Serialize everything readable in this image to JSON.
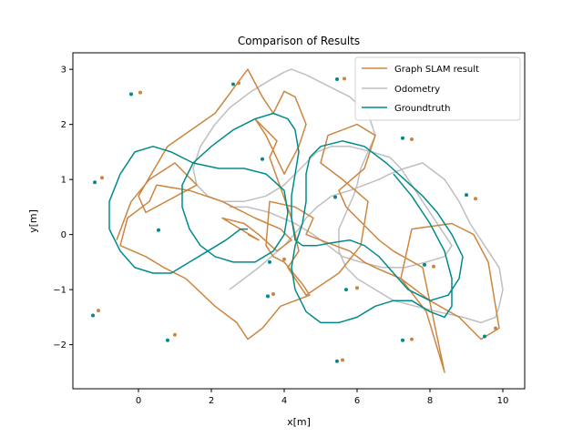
{
  "chart_data": {
    "type": "line",
    "title": "Comparison of Results",
    "xlabel": "x[m]",
    "ylabel": "y[m]",
    "xlim": [
      -1.8,
      10.6
    ],
    "ylim": [
      -2.8,
      3.3
    ],
    "xticks": [
      0,
      2,
      4,
      6,
      8,
      10
    ],
    "yticks": [
      -2,
      -1,
      0,
      1,
      2,
      3
    ],
    "grid": false,
    "legend_position": "top-right",
    "colors": {
      "slam": "#cd853f",
      "odometry": "#bfbfbf",
      "groundtruth": "#008b8b"
    },
    "series": [
      {
        "name": "Graph SLAM result",
        "x": [
          -0.6,
          -0.2,
          0.3,
          1.0,
          1.6,
          0.2,
          0.0,
          0.8,
          2.1,
          3.0,
          3.4,
          3.7,
          4.0,
          4.3,
          4.6,
          4.4,
          4.0,
          3.5,
          3.2,
          3.8,
          3.6,
          4.2,
          4.4,
          4.1,
          4.6,
          5.5,
          6.1,
          6.3,
          5.6,
          5.0,
          5.2,
          6.0,
          6.5,
          6.2,
          5.5,
          5.7,
          6.6,
          7.0,
          7.8,
          8.4,
          7.9,
          7.2,
          7.5,
          8.6,
          9.2,
          9.6,
          9.9,
          9.4,
          8.8,
          8.0,
          7.2,
          6.5,
          6.2,
          5.8,
          5.0,
          4.6,
          4.8,
          4.3,
          3.6,
          3.5,
          3.7,
          4.0,
          4.5,
          4.7,
          3.9,
          3.4,
          3.0,
          2.7,
          2.1,
          1.3,
          0.7,
          0.2,
          -0.5,
          -0.3,
          0.3,
          0.5,
          1.4,
          2.3,
          3.2,
          3.9,
          4.2,
          3.8,
          3.3,
          2.9,
          2.3,
          2.8,
          3.3,
          3.0
        ],
        "y": [
          -0.1,
          0.6,
          1.0,
          1.3,
          0.9,
          0.4,
          0.7,
          1.6,
          2.2,
          3.0,
          2.5,
          2.2,
          2.6,
          2.5,
          2.0,
          1.6,
          1.1,
          1.8,
          2.1,
          1.7,
          1.4,
          0.3,
          -0.3,
          -0.6,
          -1.1,
          -0.7,
          -0.2,
          0.6,
          1.0,
          1.3,
          1.8,
          2.0,
          1.8,
          1.2,
          0.8,
          0.5,
          -0.1,
          -0.3,
          -0.6,
          -2.5,
          -1.4,
          -0.8,
          0.1,
          0.2,
          0.0,
          -0.5,
          -1.7,
          -1.9,
          -1.5,
          -1.2,
          -0.8,
          -0.6,
          -0.5,
          -0.3,
          -0.1,
          0.0,
          0.3,
          0.5,
          0.6,
          -0.2,
          -0.4,
          -0.5,
          -0.9,
          -1.1,
          -1.3,
          -1.7,
          -1.9,
          -1.6,
          -1.3,
          -0.8,
          -0.6,
          -0.4,
          -0.2,
          0.3,
          0.6,
          0.9,
          0.8,
          0.6,
          0.3,
          0.1,
          -0.1,
          -0.3,
          0.0,
          0.2,
          0.3,
          0.1,
          -0.1,
          0.0
        ],
        "landmarks_x": [
          0.05,
          -1.0,
          2.75,
          5.65,
          7.5,
          9.25,
          8.1,
          6.0,
          7.5,
          4.0,
          1.0,
          -1.1,
          5.6,
          3.7,
          9.8
        ],
        "landmarks_y": [
          2.58,
          1.03,
          2.75,
          2.83,
          1.73,
          0.65,
          -0.58,
          -0.97,
          -1.9,
          -0.45,
          -1.82,
          -1.38,
          -2.28,
          -1.08,
          -1.7
        ]
      },
      {
        "name": "Odometry",
        "x": [
          2.5,
          3.3,
          4.0,
          4.4,
          4.6,
          4.9,
          5.3,
          5.8,
          6.2,
          6.6,
          6.9,
          7.3,
          7.8,
          8.4,
          8.8,
          9.1,
          9.5,
          9.9,
          10.0,
          9.9,
          9.8,
          9.4,
          8.9,
          8.2,
          7.6,
          7.0,
          6.5,
          6.0,
          5.7,
          5.5,
          5.5,
          5.7,
          5.9,
          6.0,
          6.1,
          6.3,
          6.5,
          6.3,
          5.8,
          5.2,
          4.6,
          4.2,
          4.0,
          3.6,
          3.1,
          2.5,
          2.1,
          1.7,
          1.5,
          1.6,
          1.9,
          2.3,
          2.9,
          3.5,
          4.0,
          4.3,
          4.6,
          4.9,
          5.3,
          5.8,
          6.4,
          6.9,
          7.2,
          7.4,
          7.7,
          8.0,
          8.3,
          8.6,
          8.4,
          7.9,
          7.3,
          6.7,
          6.1,
          5.6,
          5.2,
          4.8,
          4.3,
          3.6,
          3.0,
          2.5
        ],
        "y": [
          -1.0,
          -0.6,
          -0.2,
          0.1,
          0.3,
          0.5,
          0.7,
          0.8,
          0.9,
          1.0,
          1.1,
          1.2,
          1.3,
          1.0,
          0.6,
          0.2,
          -0.2,
          -0.6,
          -1.0,
          -1.3,
          -1.5,
          -1.6,
          -1.5,
          -1.4,
          -1.3,
          -1.2,
          -1.0,
          -0.8,
          -0.6,
          -0.3,
          0.1,
          0.4,
          0.7,
          0.9,
          1.2,
          1.5,
          1.8,
          2.2,
          2.5,
          2.7,
          2.9,
          3.0,
          2.95,
          2.8,
          2.6,
          2.3,
          2.0,
          1.6,
          1.2,
          0.9,
          0.7,
          0.6,
          0.6,
          0.7,
          0.9,
          1.1,
          1.3,
          1.5,
          1.6,
          1.6,
          1.5,
          1.4,
          1.2,
          1.0,
          0.7,
          0.4,
          0.1,
          -0.2,
          -0.4,
          -0.5,
          -0.6,
          -0.6,
          -0.5,
          -0.4,
          -0.2,
          0.0,
          0.2,
          0.4,
          0.5,
          0.5
        ]
      },
      {
        "name": "Groundtruth",
        "x": [
          7.0,
          7.5,
          8.0,
          8.4,
          8.6,
          8.6,
          8.4,
          8.0,
          7.5,
          7.0,
          6.5,
          6.0,
          5.5,
          5.0,
          4.6,
          4.3,
          4.2,
          4.3,
          4.5,
          4.6,
          4.6,
          4.7,
          5.0,
          5.6,
          6.2,
          6.8,
          7.3,
          7.8,
          8.2,
          8.6,
          8.9,
          8.8,
          8.5,
          8.0,
          7.4,
          7.0,
          6.6,
          6.2,
          5.8,
          5.3,
          4.9,
          4.5,
          4.3,
          4.2,
          4.2,
          4.3,
          4.4,
          4.3,
          4.1,
          3.7,
          3.2,
          2.6,
          2.0,
          1.5,
          1.2,
          1.2,
          1.4,
          1.7,
          2.1,
          2.6,
          3.2,
          3.7,
          4.0,
          4.1,
          4.0,
          3.5,
          2.9,
          2.2,
          1.5,
          0.9,
          0.4,
          -0.1,
          -0.5,
          -0.8,
          -0.8,
          -0.5,
          -0.1,
          0.4,
          0.9,
          1.4,
          1.9,
          2.4,
          2.8,
          3.0
        ],
        "y": [
          1.1,
          0.7,
          0.2,
          -0.3,
          -0.8,
          -1.3,
          -1.5,
          -1.4,
          -1.2,
          -1.2,
          -1.3,
          -1.5,
          -1.6,
          -1.6,
          -1.4,
          -1.0,
          -0.6,
          -0.2,
          0.2,
          0.6,
          1.1,
          1.4,
          1.6,
          1.7,
          1.6,
          1.3,
          1.0,
          0.7,
          0.4,
          0.0,
          -0.4,
          -0.8,
          -1.1,
          -1.2,
          -1.0,
          -0.7,
          -0.4,
          -0.2,
          -0.1,
          -0.15,
          -0.2,
          -0.2,
          -0.1,
          0.3,
          0.7,
          1.1,
          1.5,
          1.9,
          2.1,
          2.2,
          2.1,
          1.9,
          1.6,
          1.3,
          0.9,
          0.5,
          0.1,
          -0.2,
          -0.4,
          -0.5,
          -0.5,
          -0.3,
          0.0,
          0.4,
          0.8,
          1.1,
          1.2,
          1.2,
          1.3,
          1.5,
          1.6,
          1.5,
          1.1,
          0.6,
          0.1,
          -0.3,
          -0.6,
          -0.7,
          -0.7,
          -0.5,
          -0.3,
          -0.1,
          0.1,
          0.1
        ],
        "landmarks_x": [
          -0.2,
          -1.2,
          2.6,
          5.45,
          7.25,
          9.0,
          7.85,
          5.7,
          7.25,
          3.6,
          0.8,
          -1.25,
          5.45,
          3.55,
          9.5,
          3.4,
          0.55,
          5.4
        ],
        "landmarks_y": [
          2.55,
          0.95,
          2.73,
          2.82,
          1.75,
          0.72,
          -0.55,
          -1.0,
          -1.92,
          -0.5,
          -1.92,
          -1.47,
          -2.3,
          -1.12,
          -1.85,
          1.37,
          0.08,
          0.68
        ]
      }
    ]
  }
}
